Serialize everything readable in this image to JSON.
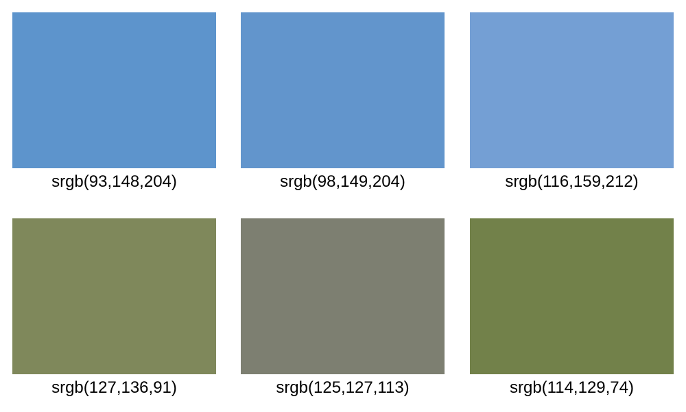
{
  "swatches": [
    {
      "label": "srgb(93,148,204)",
      "color": "#5d94cc"
    },
    {
      "label": "srgb(98,149,204)",
      "color": "#6295cc"
    },
    {
      "label": "srgb(116,159,212)",
      "color": "#749fd4"
    },
    {
      "label": "srgb(127,136,91)",
      "color": "#7f885b"
    },
    {
      "label": "srgb(125,127,113)",
      "color": "#7d7f71"
    },
    {
      "label": "srgb(114,129,74)",
      "color": "#72814a"
    }
  ]
}
